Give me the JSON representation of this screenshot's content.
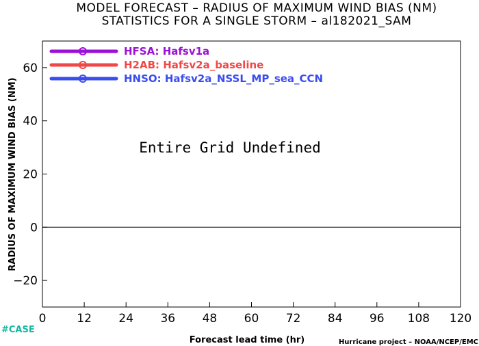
{
  "colors": {
    "hfsa": "#9b10d6",
    "h2ab": "#f04848",
    "hnso": "#3a4cf0",
    "case_tag": "#17b8a0"
  },
  "chart_data": {
    "type": "line",
    "title": "MODEL FORECAST – RADIUS OF MAXIMUM WIND BIAS (NM)",
    "subtitle": "STATISTICS FOR A SINGLE STORM – al182021_SAM",
    "xlabel": "Forecast lead time (hr)",
    "ylabel": "RADIUS OF MAXIMUM WIND BIAS (NM)",
    "xlim": [
      0,
      120
    ],
    "ylim": [
      -30,
      70
    ],
    "x_ticks": [
      0,
      12,
      24,
      36,
      48,
      60,
      72,
      84,
      96,
      108,
      120
    ],
    "y_ticks": [
      -20,
      0,
      20,
      40,
      60
    ],
    "y_tick_labels": [
      "−20",
      "0",
      "20",
      "40",
      "60"
    ],
    "reference_line_y": 0,
    "annotation": "Entire Grid Undefined",
    "legend_position": "top-left",
    "series": [
      {
        "name": "HFSA: Hafsv1a",
        "color": "#9b10d6",
        "values": []
      },
      {
        "name": "H2AB: Hafsv2a_baseline",
        "color": "#f04848",
        "values": []
      },
      {
        "name": "HNSO: Hafsv2a_NSSL_MP_sea_CCN",
        "color": "#3a4cf0",
        "values": []
      }
    ]
  },
  "footer": {
    "case_tag": "#CASE",
    "credit": "Hurricane project – NOAA/NCEP/EMC"
  }
}
